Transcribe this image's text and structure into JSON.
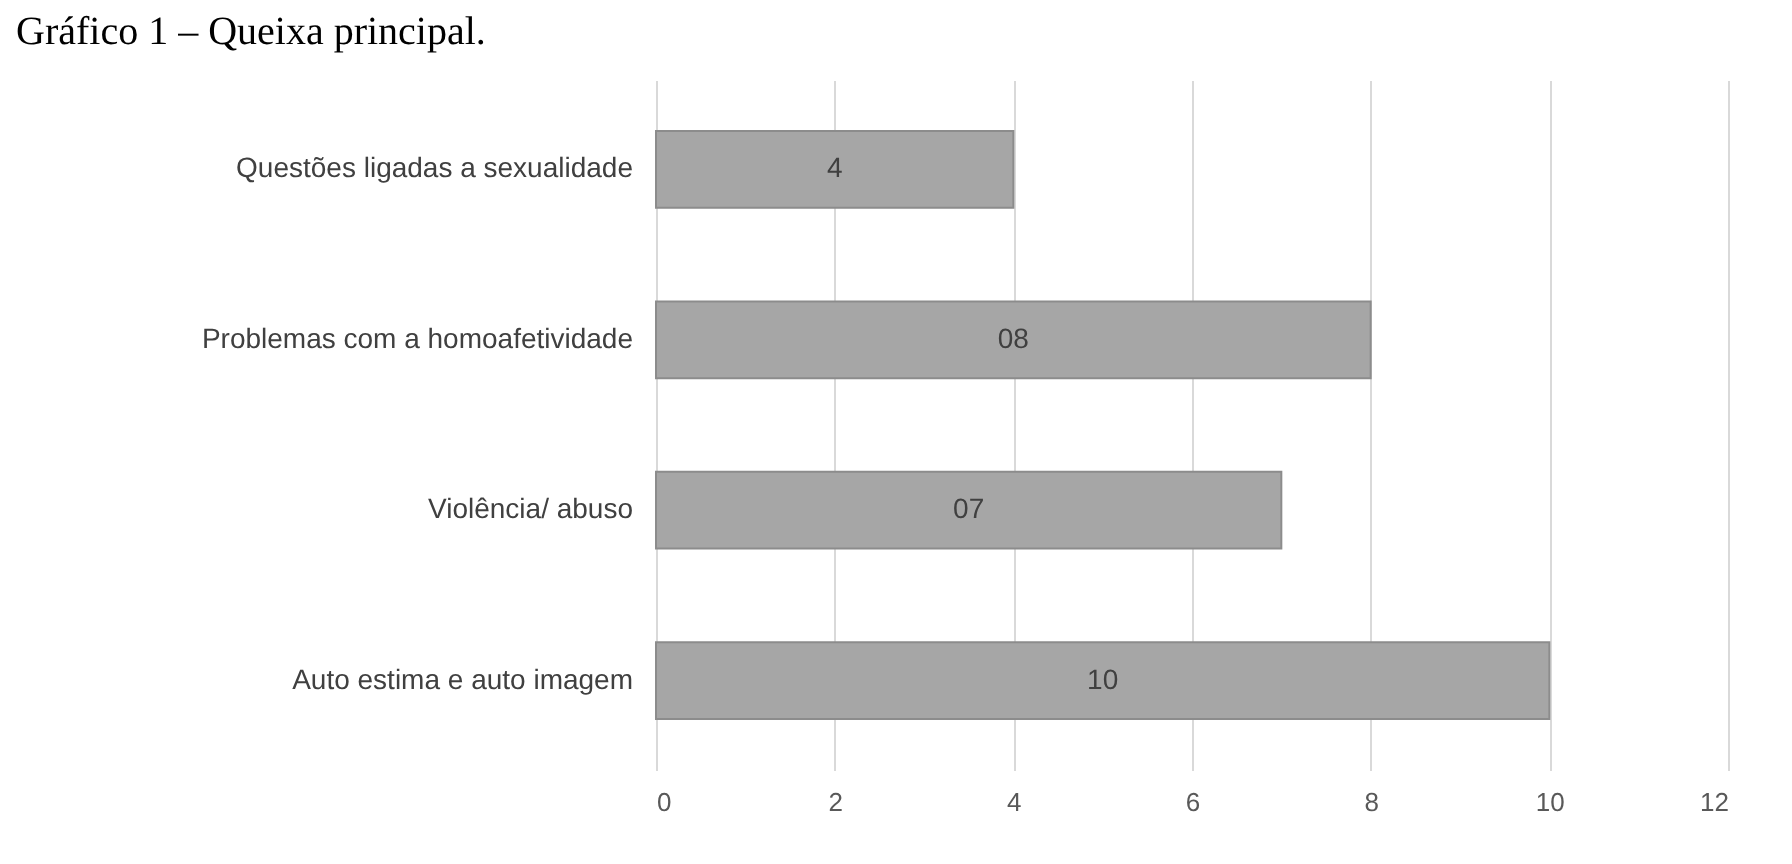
{
  "chart_data": {
    "type": "bar",
    "orientation": "horizontal",
    "title": "Gráfico 1 – Queixa principal.",
    "categories": [
      "Questões ligadas a sexualidade",
      "Problemas com a homoafetividade",
      "Violência/ abuso",
      "Auto estima e auto imagem"
    ],
    "values": [
      4,
      8,
      7,
      10
    ],
    "value_labels": [
      "4",
      "08",
      "07",
      "10"
    ],
    "color": "#a6a6a6",
    "xlim": [
      0,
      12
    ],
    "xticks": [
      0,
      2,
      4,
      6,
      8,
      10,
      12
    ],
    "grid": "x"
  }
}
